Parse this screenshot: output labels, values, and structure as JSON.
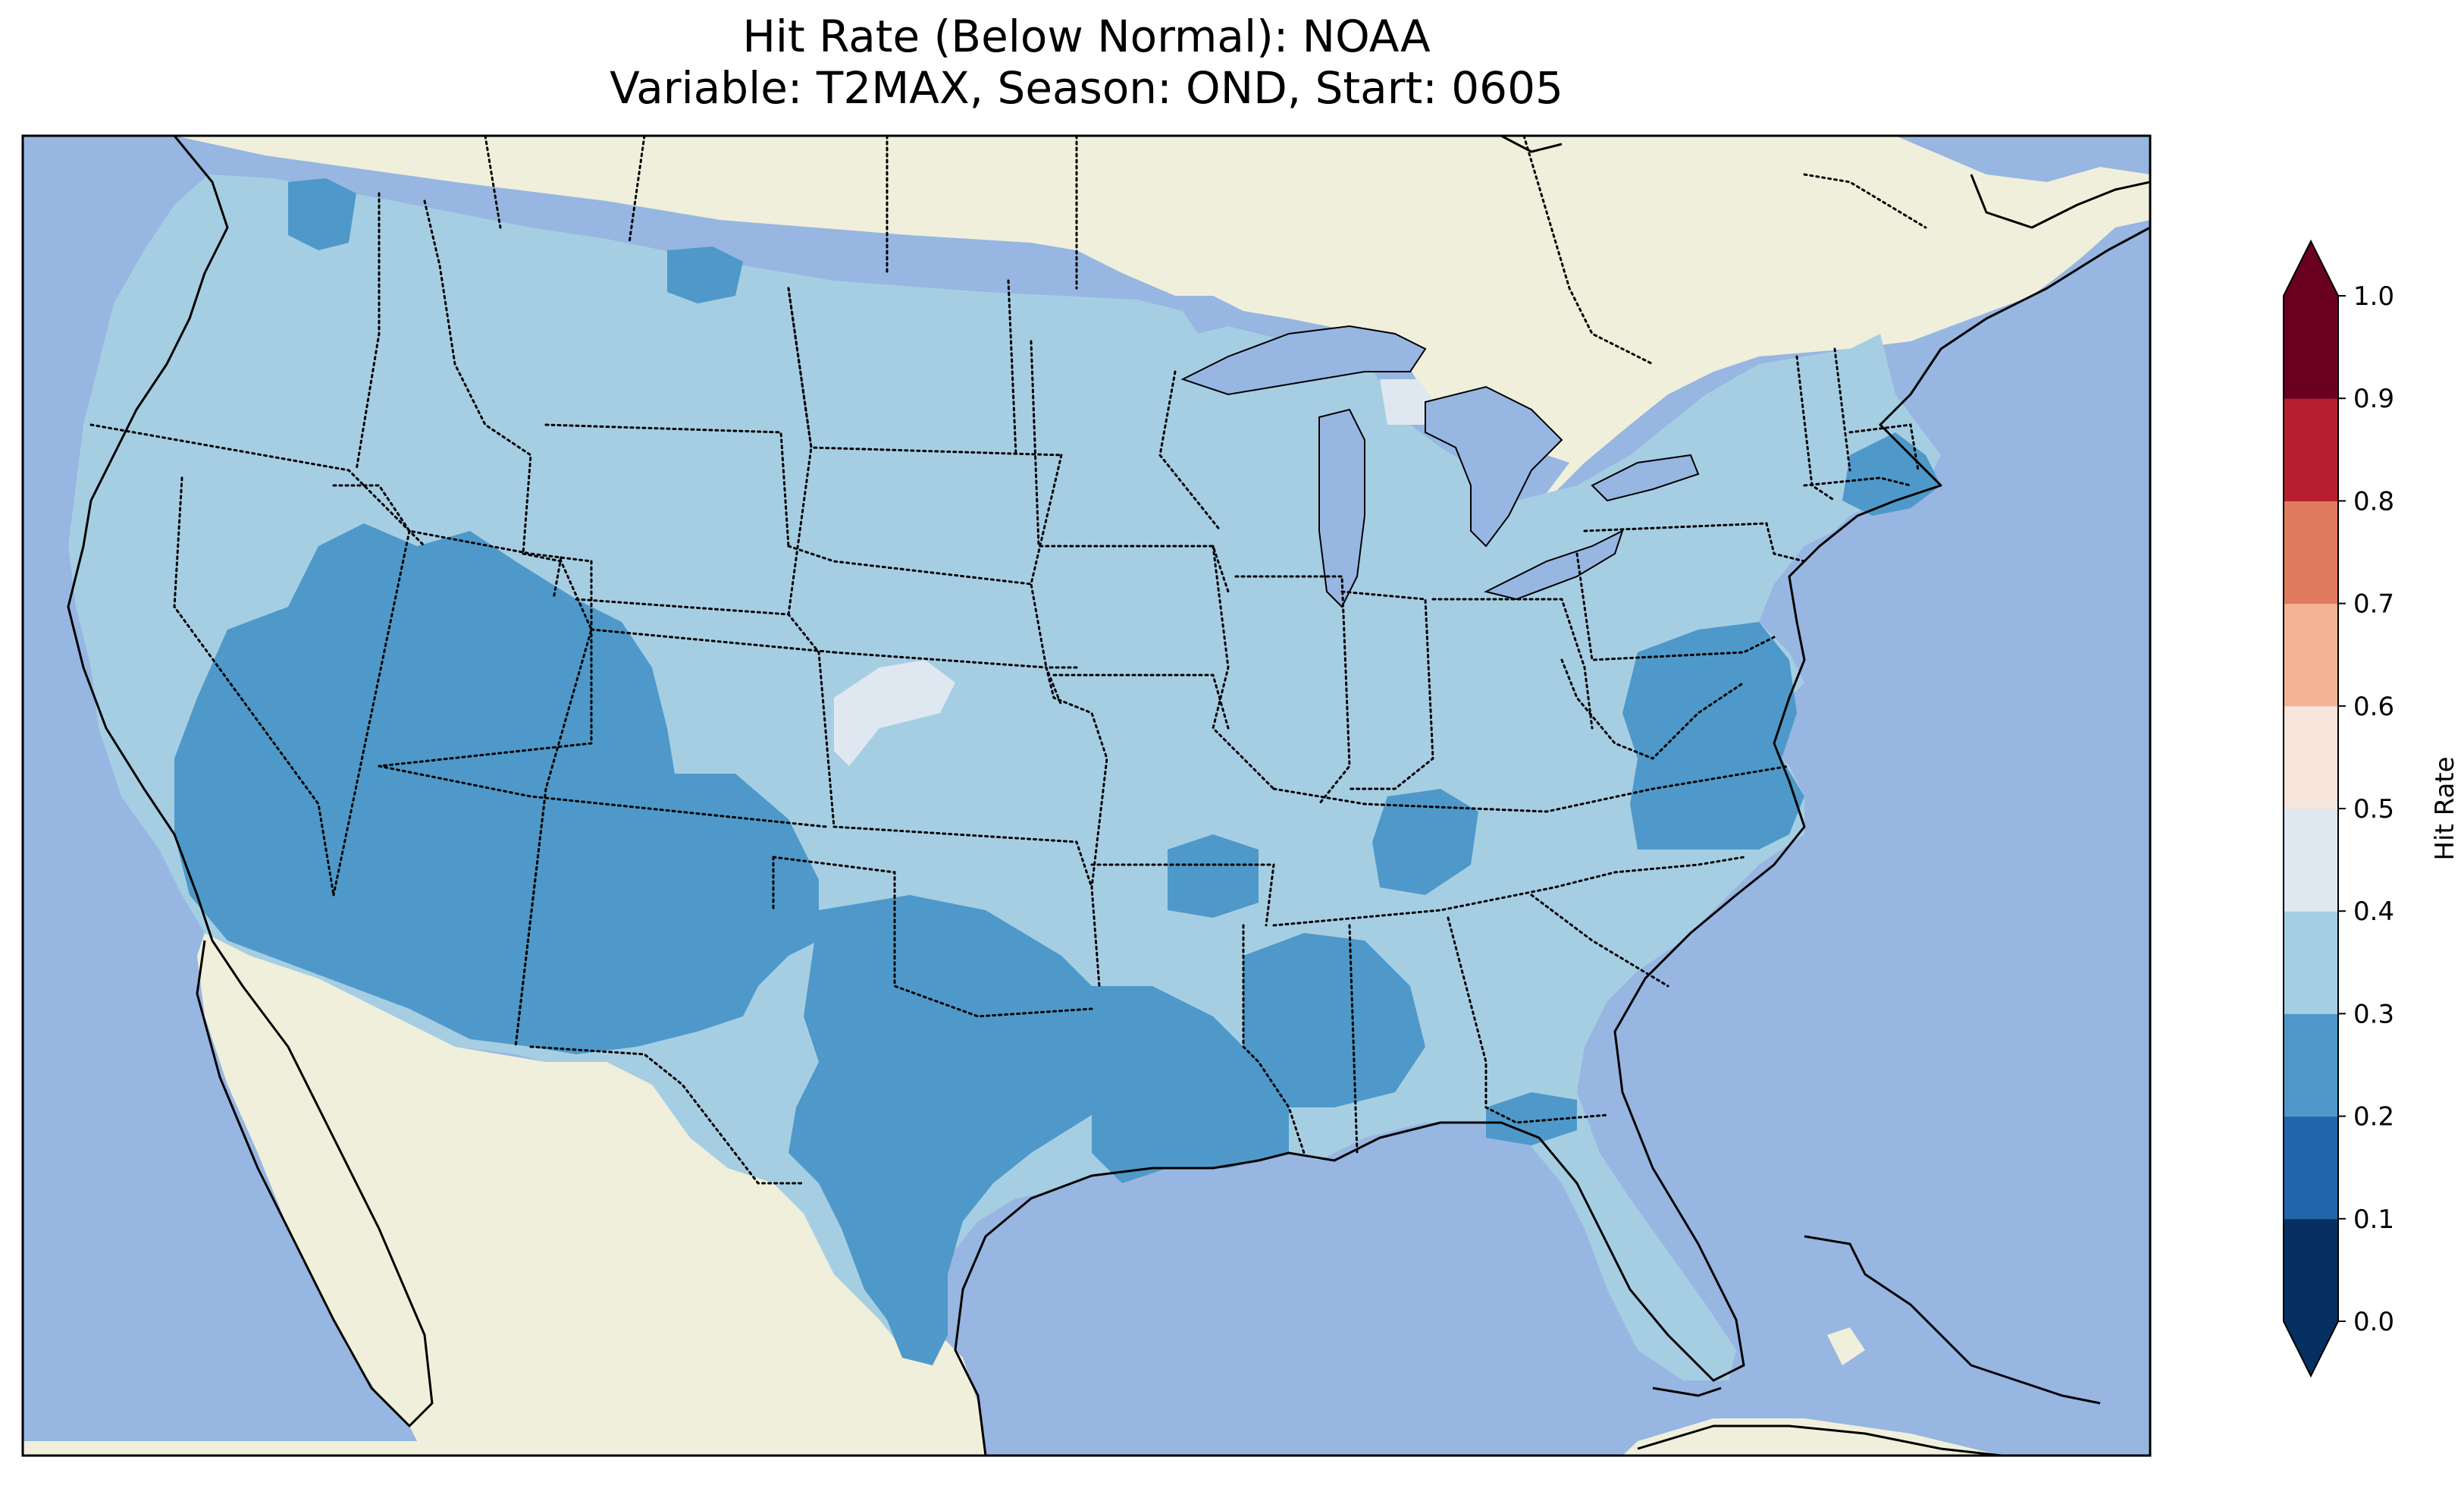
{
  "title": {
    "line1": "Hit Rate (Below Normal): NOAA",
    "line2": "Variable: T2MAX, Season: OND, Start: 0605"
  },
  "map": {
    "projection": "Plate Carrée",
    "region": "Continental United States",
    "extent_deg": {
      "lon": [
        -125,
        -66
      ],
      "lat": [
        22,
        50
      ]
    },
    "colors": {
      "ocean": "#97b6e1",
      "land": "#efefdb",
      "coastline": "#000000",
      "state_borders": "#000000"
    },
    "field_values_observed": [
      0.2,
      0.3,
      0.4
    ],
    "regions_with_0.2_0.3_hit_rate": [
      "Southwest (California, Nevada, Arizona, Utah, New Mexico)",
      "Texas and Gulf Coast",
      "Mid-Atlantic (Virginia, Maryland, Delaware, New Jersey)",
      "Southern New England",
      "Mississippi / Alabama"
    ],
    "regions_with_0.4_0.5_hit_rate": [
      "Western Kansas / eastern Colorado",
      "Upper Peninsula of Michigan"
    ]
  },
  "colorbar": {
    "label": "Hit Rate",
    "levels": [
      0.0,
      0.1,
      0.2,
      0.3,
      0.4,
      0.5,
      0.6,
      0.7,
      0.8,
      0.9,
      1.0
    ],
    "tick_labels": [
      "0.0",
      "0.1",
      "0.2",
      "0.3",
      "0.4",
      "0.5",
      "0.6",
      "0.7",
      "0.8",
      "0.9",
      "1.0"
    ],
    "colors": [
      "#053061",
      "#2166ac",
      "#4393c3",
      "#92c5de",
      "#d1e5f0",
      "#fddbc7",
      "#f4a582",
      "#d6604d",
      "#b2182b",
      "#67001f"
    ],
    "colors_rendered": [
      "#053061",
      "#2166ac",
      "#4e99c9",
      "#a6cee3",
      "#dfe8f0",
      "#f8e5dc",
      "#f4b392",
      "#e07a5f",
      "#b81e2e",
      "#6a0020"
    ],
    "extend": "both",
    "under_color": "#053061",
    "over_color": "#67001f"
  }
}
